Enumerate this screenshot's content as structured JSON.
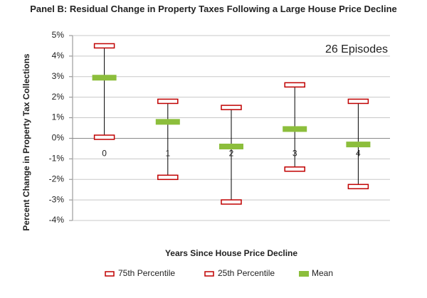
{
  "chart_data": {
    "type": "range",
    "title": "Panel B: Residual Change in Property Taxes Following a Large House Price Decline",
    "annotation": "26 Episodes",
    "x_label": "Years Since House Price Decline",
    "y_label": "Percent Change in Property Tax Collections",
    "categories": [
      "0",
      "1",
      "2",
      "3",
      "4"
    ],
    "series": [
      {
        "name": "75th Percentile",
        "color": "#c00000",
        "values": [
          4.5,
          1.8,
          1.5,
          2.6,
          1.8
        ]
      },
      {
        "name": "25th Percentile",
        "color": "#c00000",
        "values": [
          0.05,
          -1.9,
          -3.1,
          -1.5,
          -2.35
        ]
      },
      {
        "name": "Mean",
        "color": "#8cbe3c",
        "values": [
          2.95,
          0.8,
          -0.4,
          0.45,
          -0.3
        ]
      }
    ],
    "ylim": [
      -4,
      5
    ],
    "yticks": [
      {
        "value": -4,
        "label": "-4%"
      },
      {
        "value": -3,
        "label": "-3%"
      },
      {
        "value": -2,
        "label": "-2%"
      },
      {
        "value": -1,
        "label": "-1%"
      },
      {
        "value": 0,
        "label": "0%"
      },
      {
        "value": 1,
        "label": "1%"
      },
      {
        "value": 2,
        "label": "2%"
      },
      {
        "value": 3,
        "label": "3%"
      },
      {
        "value": 4,
        "label": "4%"
      },
      {
        "value": 5,
        "label": "5%"
      }
    ],
    "grid": true,
    "legend": "bottom"
  }
}
